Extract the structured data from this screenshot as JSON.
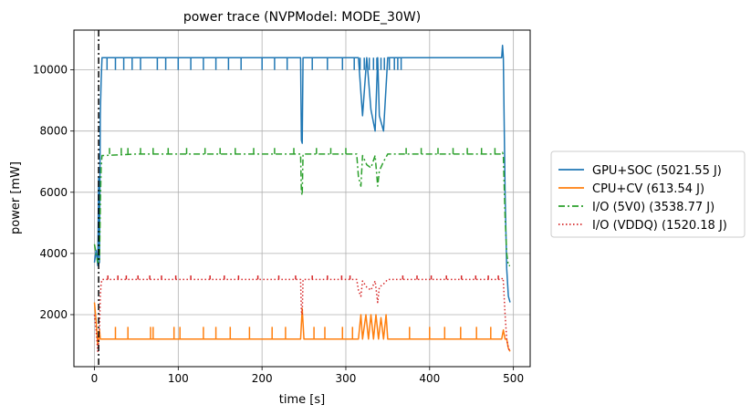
{
  "chart_data": {
    "type": "line",
    "title": "power trace (NVPModel: MODE_30W)",
    "xlabel": "time [s]",
    "ylabel": "power [mW]",
    "xlim": [
      -24.5,
      520
    ],
    "ylim": [
      300,
      11300
    ],
    "xticks": [
      0,
      100,
      200,
      300,
      400,
      500
    ],
    "yticks": [
      2000,
      4000,
      6000,
      8000,
      10000
    ],
    "grid": true,
    "legend_position": "outside-right",
    "marker_vline": {
      "x": 5
    },
    "series": [
      {
        "name": "GPU+SOC (5021.55 J)",
        "color": "#1f77b4",
        "style": "solid",
        "x": [
          0,
          2,
          4,
          5,
          6,
          7,
          8,
          9,
          10,
          12,
          20,
          60,
          100,
          150,
          200,
          246,
          247,
          248,
          249,
          250,
          300,
          315,
          320,
          325,
          330,
          335,
          338,
          340,
          345,
          350,
          360,
          400,
          450,
          486,
          487,
          488,
          490,
          492,
          494,
          496
        ],
        "y": [
          3700,
          4100,
          3600,
          6500,
          3700,
          8500,
          9600,
          10400,
          10400,
          10400,
          10400,
          10400,
          10400,
          10400,
          10400,
          10400,
          7700,
          7600,
          10400,
          10400,
          10400,
          10400,
          8500,
          10400,
          8700,
          8000,
          10400,
          8500,
          8000,
          10400,
          10400,
          10400,
          10400,
          10400,
          10800,
          10400,
          6000,
          3500,
          2600,
          2400
        ],
        "spikes": {
          "baseline": 10400,
          "low": 10000,
          "x": [
            15,
            25,
            35,
            45,
            55,
            75,
            85,
            100,
            115,
            130,
            145,
            160,
            175,
            200,
            215,
            230,
            260,
            278,
            296,
            310,
            317,
            322,
            328,
            333,
            337,
            342,
            346,
            352,
            358,
            362,
            366
          ]
        }
      },
      {
        "name": "CPU+CV (613.54 J)",
        "color": "#ff7f0e",
        "style": "solid",
        "x": [
          0,
          2,
          4,
          6,
          7,
          8,
          10,
          12,
          50,
          100,
          150,
          200,
          246,
          248,
          250,
          300,
          315,
          318,
          320,
          324,
          327,
          330,
          333,
          336,
          339,
          342,
          345,
          348,
          350,
          360,
          400,
          450,
          486,
          488,
          490,
          492,
          494,
          496
        ],
        "y": [
          2400,
          1800,
          1000,
          1500,
          1200,
          1200,
          1200,
          1200,
          1200,
          1200,
          1200,
          1200,
          1200,
          2200,
          1200,
          1200,
          1200,
          2000,
          1200,
          2000,
          1200,
          2000,
          1200,
          2000,
          1200,
          1900,
          1200,
          2000,
          1200,
          1200,
          1200,
          1200,
          1200,
          1500,
          1200,
          1200,
          900,
          800
        ],
        "spikes": {
          "baseline": 1200,
          "low": 1600,
          "x": [
            25,
            40,
            67,
            70,
            95,
            102,
            130,
            145,
            162,
            185,
            212,
            228,
            262,
            275,
            296,
            308,
            376,
            400,
            418,
            437,
            456,
            473
          ]
        }
      },
      {
        "name": "I/O (5V0) (3538.77 J)",
        "color": "#2ca02c",
        "style": "dashdot",
        "x": [
          0,
          2,
          4,
          6,
          7,
          8,
          9,
          10,
          12,
          50,
          100,
          150,
          200,
          246,
          247,
          248,
          249,
          250,
          300,
          313,
          315,
          318,
          320,
          325,
          330,
          335,
          338,
          340,
          345,
          350,
          360,
          400,
          450,
          486,
          487,
          488,
          490,
          492,
          494,
          496
        ],
        "y": [
          4300,
          4000,
          3700,
          3700,
          5500,
          6800,
          7200,
          7200,
          7200,
          7250,
          7250,
          7250,
          7250,
          7250,
          6000,
          5900,
          7250,
          7250,
          7250,
          7250,
          6500,
          6200,
          7200,
          6900,
          6800,
          7200,
          6200,
          6700,
          7000,
          7250,
          7250,
          7250,
          7250,
          7250,
          7300,
          7200,
          5200,
          4000,
          3600,
          3600
        ],
        "spikes": {
          "baseline": 7250,
          "low": 7450,
          "x": [
            18,
            32,
            40,
            55,
            70,
            88,
            110,
            132,
            150,
            168,
            190,
            215,
            238,
            265,
            282,
            300,
            372,
            390,
            410,
            428,
            445,
            462,
            478
          ]
        }
      },
      {
        "name": "I/O (VDDQ) (1520.18 J)",
        "color": "#d62728",
        "style": "dotted",
        "x": [
          0,
          2,
          4,
          6,
          7,
          8,
          9,
          10,
          12,
          50,
          100,
          150,
          200,
          246,
          247,
          248,
          249,
          250,
          300,
          313,
          315,
          318,
          320,
          325,
          330,
          335,
          338,
          340,
          345,
          350,
          360,
          400,
          450,
          486,
          487,
          488,
          490,
          492,
          494,
          496
        ],
        "y": [
          2000,
          1500,
          800,
          1500,
          2600,
          3000,
          3150,
          3150,
          3150,
          3150,
          3150,
          3150,
          3150,
          3150,
          2100,
          2000,
          3150,
          3150,
          3150,
          3150,
          2800,
          2600,
          3100,
          2900,
          2800,
          3100,
          2400,
          2900,
          3000,
          3150,
          3150,
          3150,
          3150,
          3150,
          3200,
          3100,
          2000,
          1200,
          900,
          800
        ],
        "spikes": {
          "baseline": 3150,
          "low": 3280,
          "x": [
            16,
            28,
            38,
            52,
            66,
            80,
            97,
            115,
            138,
            155,
            172,
            195,
            220,
            240,
            260,
            278,
            295,
            305,
            368,
            385,
            402,
            420,
            438,
            455,
            470,
            482
          ]
        }
      }
    ]
  }
}
